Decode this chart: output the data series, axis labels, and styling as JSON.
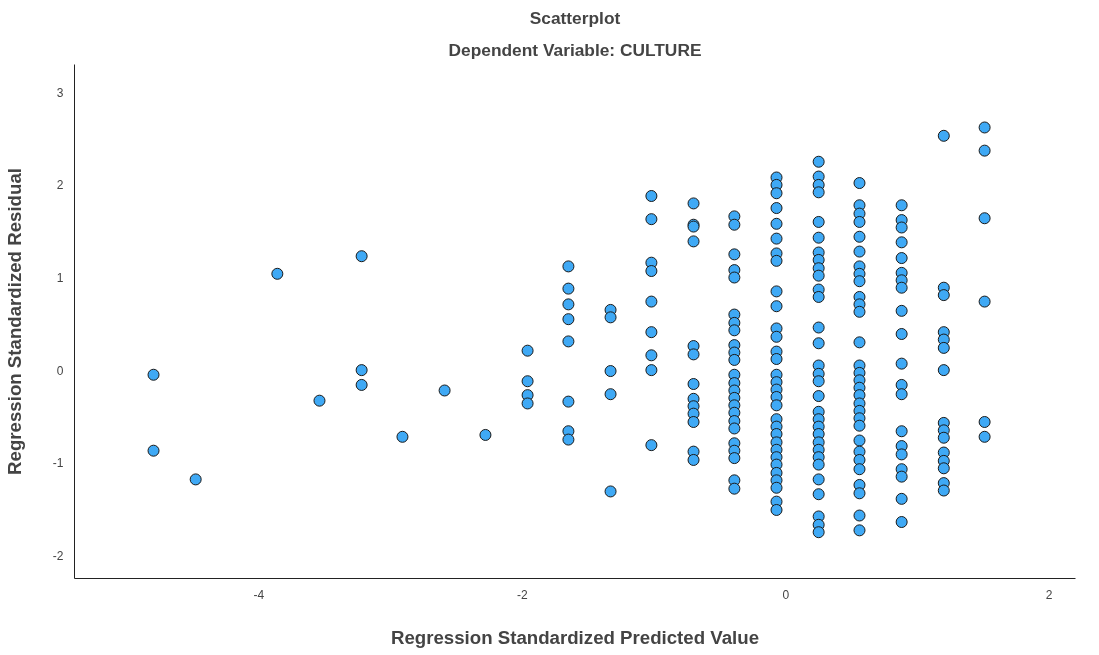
{
  "chart_data": {
    "type": "scatter",
    "title": "Scatterplot",
    "subtitle": "Dependent Variable: CULTURE",
    "xlabel": "Regression Standardized Predicted Value",
    "ylabel": "Regression Standardized Residual",
    "xlim": [
      -5.4,
      2.2
    ],
    "ylim": [
      -2.25,
      3.3
    ],
    "xticks": [
      -4,
      -2,
      0,
      2
    ],
    "yticks": [
      -2,
      -1,
      0,
      1,
      2,
      3
    ],
    "grid": false,
    "marker": "circle",
    "series": [
      {
        "color": "#3fa9f5",
        "x": [
          -4.8,
          -4.8,
          -4.48,
          -3.86,
          -3.54,
          -3.22,
          -3.22,
          -3.22,
          -2.91,
          -2.59,
          -2.28,
          -1.96,
          -1.96,
          -1.96,
          -1.96,
          -1.65,
          -1.65,
          -1.65,
          -1.65,
          -1.65,
          -1.65,
          -1.65,
          -1.65,
          -1.33,
          -1.33,
          -1.33,
          -1.33,
          -1.33,
          -1.02,
          -1.02,
          -1.02,
          -1.02,
          -1.02,
          -1.02,
          -1.02,
          -1.02,
          -1.02,
          -0.7,
          -0.7,
          -0.7,
          -0.7,
          -0.7,
          -0.7,
          -0.7,
          -0.7,
          -0.7,
          -0.7,
          -0.7,
          -0.7,
          -0.7,
          -0.39,
          -0.39,
          -0.39,
          -0.39,
          -0.39,
          -0.39,
          -0.39,
          -0.39,
          -0.39,
          -0.39,
          -0.39,
          -0.39,
          -0.39,
          -0.39,
          -0.39,
          -0.39,
          -0.39,
          -0.39,
          -0.39,
          -0.39,
          -0.39,
          -0.39,
          -0.39,
          -0.39,
          -0.07,
          -0.07,
          -0.07,
          -0.07,
          -0.07,
          -0.07,
          -0.07,
          -0.07,
          -0.07,
          -0.07,
          -0.07,
          -0.07,
          -0.07,
          -0.07,
          -0.07,
          -0.07,
          -0.07,
          -0.07,
          -0.07,
          -0.07,
          -0.07,
          -0.07,
          -0.07,
          -0.07,
          -0.07,
          -0.07,
          -0.07,
          -0.07,
          -0.07,
          -0.07,
          -0.07,
          0.25,
          0.25,
          0.25,
          0.25,
          0.25,
          0.25,
          0.25,
          0.25,
          0.25,
          0.25,
          0.25,
          0.25,
          0.25,
          0.25,
          0.25,
          0.25,
          0.25,
          0.25,
          0.25,
          0.25,
          0.25,
          0.25,
          0.25,
          0.25,
          0.25,
          0.25,
          0.25,
          0.25,
          0.25,
          0.25,
          0.25,
          0.56,
          0.56,
          0.56,
          0.56,
          0.56,
          0.56,
          0.56,
          0.56,
          0.56,
          0.56,
          0.56,
          0.56,
          0.56,
          0.56,
          0.56,
          0.56,
          0.56,
          0.56,
          0.56,
          0.56,
          0.56,
          0.56,
          0.56,
          0.56,
          0.56,
          0.56,
          0.56,
          0.56,
          0.56,
          0.56,
          0.88,
          0.88,
          0.88,
          0.88,
          0.88,
          0.88,
          0.88,
          0.88,
          0.88,
          0.88,
          0.88,
          0.88,
          0.88,
          0.88,
          0.88,
          0.88,
          0.88,
          0.88,
          0.88,
          0.88,
          1.2,
          1.2,
          1.2,
          1.2,
          1.2,
          1.2,
          1.2,
          1.2,
          1.2,
          1.2,
          1.2,
          1.2,
          1.2,
          1.2,
          1.2,
          1.51,
          1.51,
          1.51,
          1.51,
          1.51,
          1.51
        ],
        "values": [
          -0.05,
          -0.87,
          -1.18,
          1.04,
          -0.33,
          1.23,
          0.0,
          -0.16,
          -0.72,
          -0.22,
          -0.7,
          0.21,
          -0.12,
          -0.27,
          -0.36,
          1.12,
          0.88,
          0.71,
          0.55,
          0.31,
          -0.34,
          -0.66,
          -0.75,
          0.65,
          0.57,
          -0.01,
          -0.26,
          -1.31,
          1.88,
          1.63,
          1.16,
          1.07,
          0.74,
          0.41,
          0.16,
          0.0,
          -0.81,
          1.8,
          1.57,
          1.55,
          1.39,
          0.26,
          0.17,
          -0.15,
          -0.31,
          -0.39,
          -0.47,
          -0.56,
          -0.88,
          -0.97,
          1.66,
          1.57,
          1.25,
          1.08,
          1.0,
          0.6,
          0.51,
          0.43,
          0.27,
          0.19,
          0.11,
          -0.05,
          -0.14,
          -0.22,
          -0.3,
          -0.38,
          -0.46,
          -0.55,
          -0.63,
          -0.79,
          -0.87,
          -0.95,
          -1.19,
          -1.28,
          2.08,
          2.0,
          1.91,
          1.75,
          1.58,
          1.42,
          1.26,
          1.18,
          0.85,
          0.69,
          0.45,
          0.36,
          0.2,
          0.12,
          -0.05,
          -0.13,
          -0.21,
          -0.29,
          -0.38,
          -0.53,
          -0.61,
          -0.69,
          -0.78,
          -0.86,
          -0.94,
          -1.02,
          -1.11,
          -1.19,
          -1.27,
          -1.42,
          -1.51,
          2.25,
          2.09,
          2.0,
          1.92,
          1.6,
          1.43,
          1.27,
          1.19,
          1.1,
          1.02,
          0.87,
          0.79,
          0.46,
          0.29,
          0.05,
          -0.04,
          -0.12,
          -0.28,
          -0.45,
          -0.53,
          -0.61,
          -0.69,
          -0.78,
          -0.86,
          -0.94,
          -1.02,
          -1.18,
          -1.34,
          -1.58,
          -1.67,
          -1.75,
          2.02,
          1.78,
          1.69,
          1.6,
          1.44,
          1.28,
          1.12,
          1.04,
          0.96,
          0.79,
          0.71,
          0.63,
          0.3,
          0.05,
          -0.03,
          -0.11,
          -0.19,
          -0.27,
          -0.36,
          -0.44,
          -0.52,
          -0.6,
          -0.76,
          -0.88,
          -0.97,
          -1.07,
          -1.24,
          -1.33,
          -1.57,
          -1.73,
          1.78,
          1.62,
          1.54,
          1.38,
          1.21,
          1.05,
          0.97,
          0.89,
          0.64,
          0.39,
          0.07,
          -0.16,
          -0.26,
          -0.66,
          -0.82,
          -0.91,
          -1.07,
          -1.15,
          -1.39,
          -1.64,
          2.53,
          0.89,
          0.81,
          0.41,
          0.33,
          0.24,
          0.0,
          -0.57,
          -0.65,
          -0.73,
          -0.89,
          -0.98,
          -1.06,
          -1.22,
          -1.3,
          2.62,
          2.37,
          1.64,
          0.74,
          -0.56,
          -0.72
        ]
      }
    ]
  }
}
